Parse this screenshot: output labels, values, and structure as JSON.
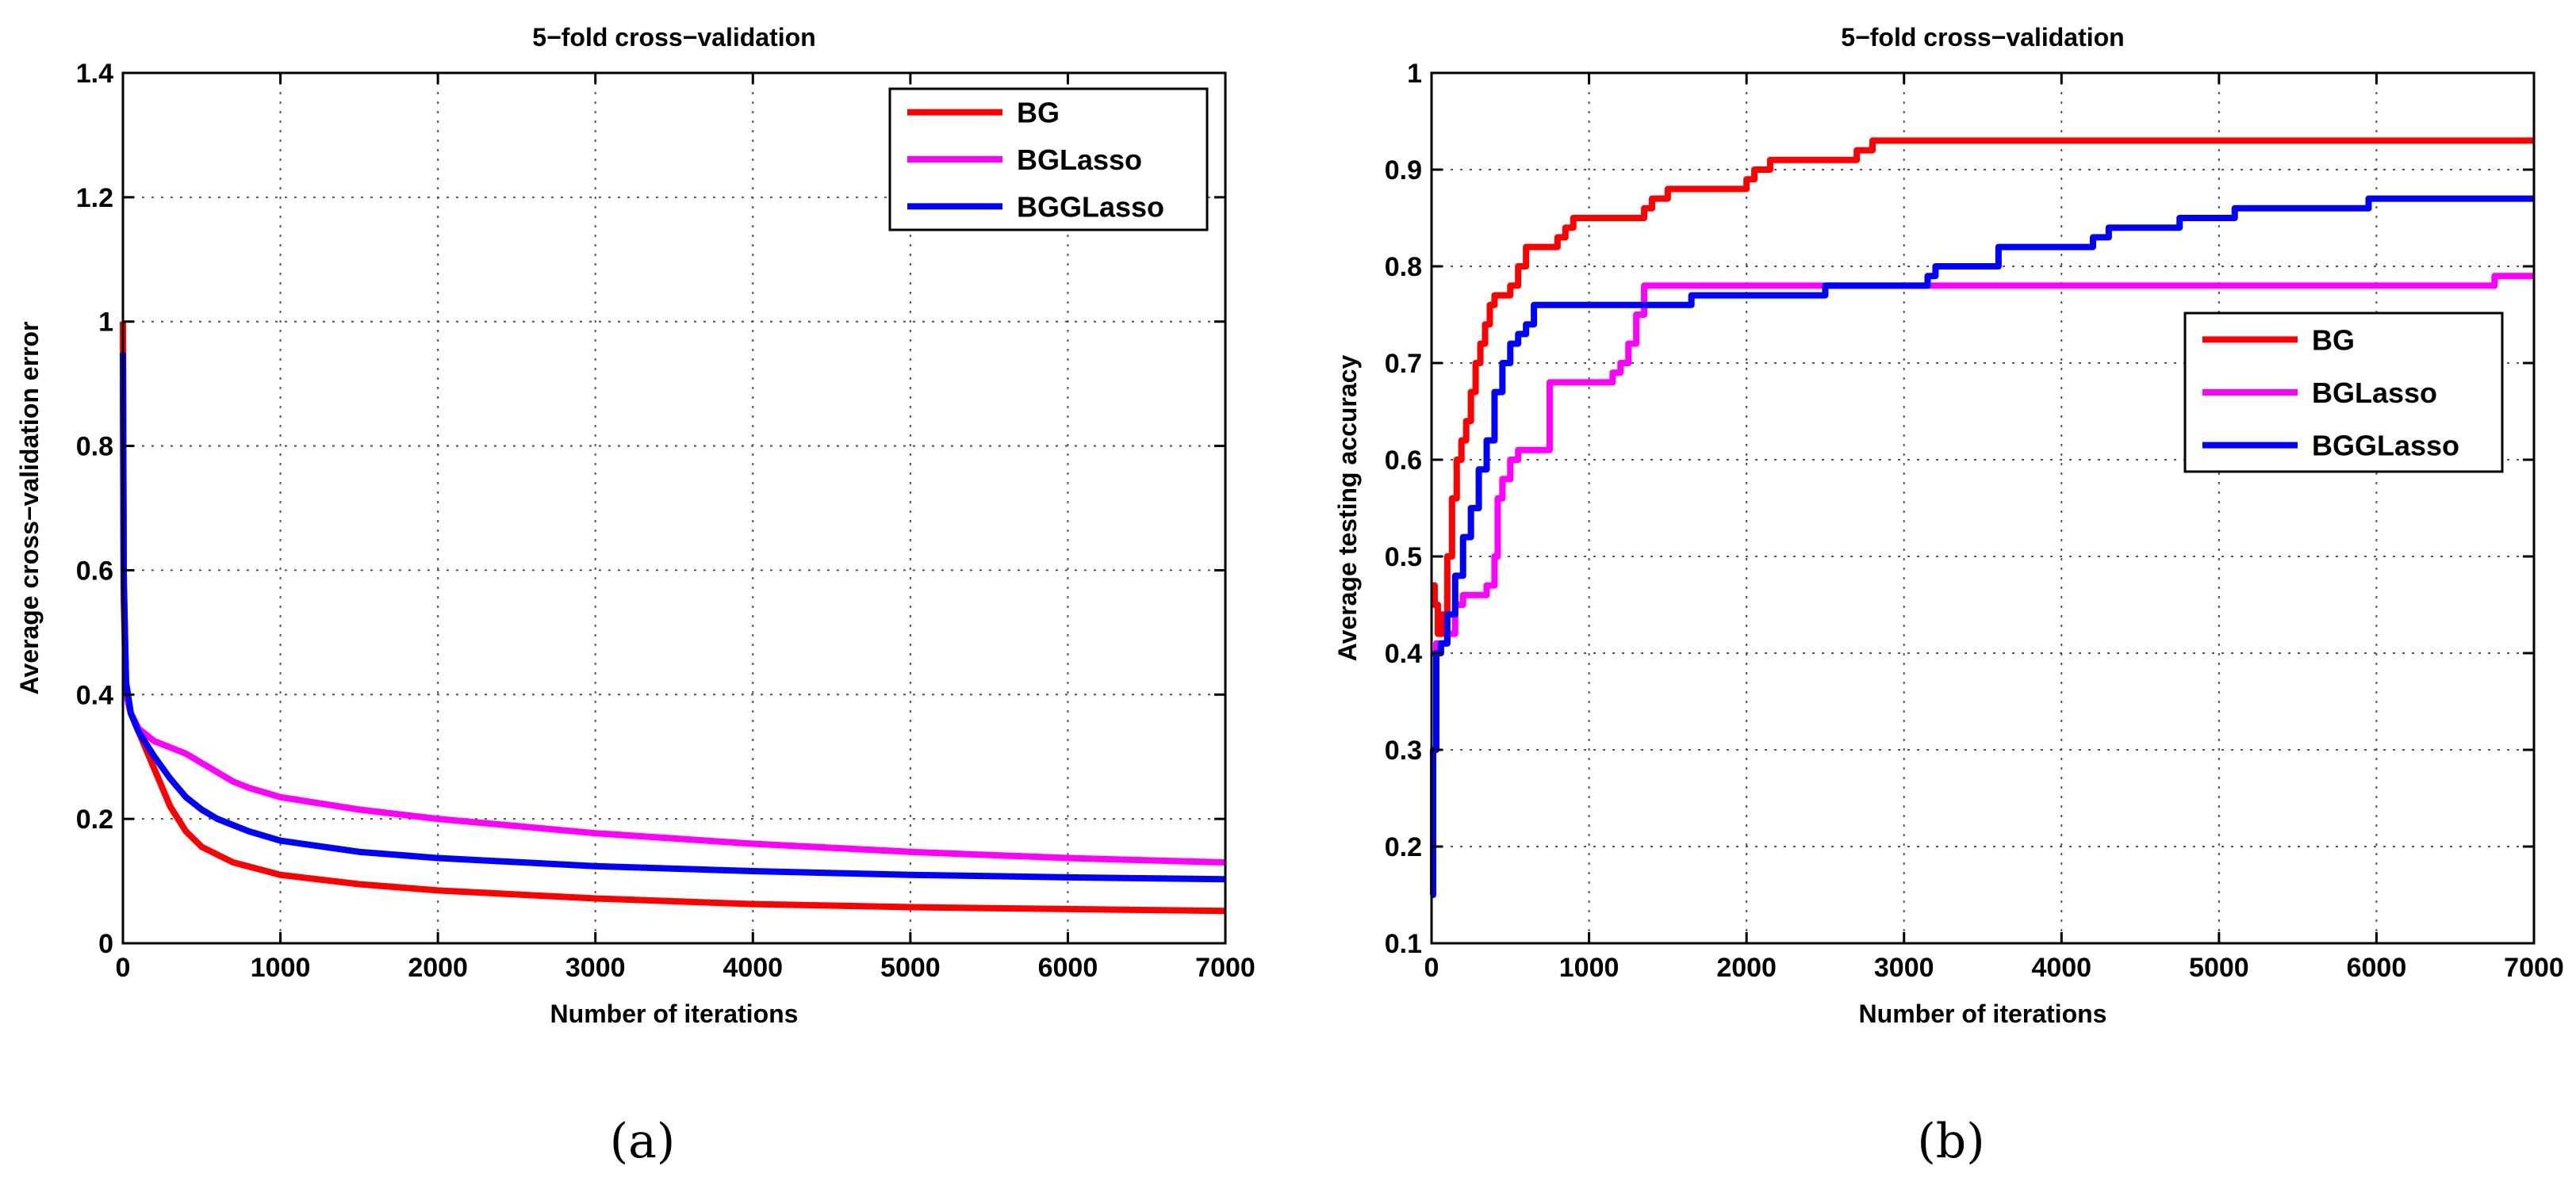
{
  "chart_data": [
    {
      "type": "line",
      "panel": "(a)",
      "title": "5−fold cross−validation",
      "xlabel": "Number of iterations",
      "ylabel": "Average cross−validation error",
      "xlim": [
        0,
        7000
      ],
      "ylim": [
        0,
        1.4
      ],
      "xticks": [
        0,
        1000,
        2000,
        3000,
        4000,
        5000,
        6000,
        7000
      ],
      "xtick_labels": [
        "0",
        "1000",
        "2000",
        "3000",
        "4000",
        "5000",
        "6000",
        "7000"
      ],
      "yticks": [
        0,
        0.2,
        0.4,
        0.6,
        0.8,
        1,
        1.2,
        1.4
      ],
      "ytick_labels": [
        "0",
        "0.2",
        "0.4",
        "0.6",
        "0.8",
        "1",
        "1.2",
        "1.4"
      ],
      "grid": true,
      "legend_position": "top-right",
      "series": [
        {
          "name": "BG",
          "color": "#ff0000",
          "x": [
            0,
            5,
            20,
            50,
            100,
            200,
            300,
            400,
            500,
            700,
            1000,
            1500,
            2000,
            3000,
            4000,
            5000,
            6000,
            7000
          ],
          "y": [
            1.0,
            0.6,
            0.4,
            0.37,
            0.34,
            0.28,
            0.22,
            0.18,
            0.155,
            0.13,
            0.11,
            0.095,
            0.085,
            0.072,
            0.063,
            0.058,
            0.055,
            0.052
          ]
        },
        {
          "name": "BGLasso",
          "color": "#ff00ff",
          "x": [
            0,
            5,
            20,
            50,
            100,
            200,
            300,
            400,
            500,
            600,
            700,
            800,
            1000,
            1500,
            2000,
            3000,
            4000,
            5000,
            6000,
            7000
          ],
          "y": [
            0.9,
            0.55,
            0.4,
            0.37,
            0.345,
            0.325,
            0.315,
            0.305,
            0.29,
            0.275,
            0.26,
            0.25,
            0.235,
            0.215,
            0.2,
            0.177,
            0.16,
            0.147,
            0.137,
            0.13
          ]
        },
        {
          "name": "BGGLasso",
          "color": "#0000ff",
          "x": [
            0,
            5,
            20,
            50,
            100,
            200,
            300,
            400,
            500,
            600,
            800,
            1000,
            1500,
            2000,
            3000,
            4000,
            5000,
            6000,
            7000
          ],
          "y": [
            0.95,
            0.58,
            0.42,
            0.37,
            0.34,
            0.3,
            0.265,
            0.235,
            0.215,
            0.2,
            0.18,
            0.165,
            0.147,
            0.137,
            0.124,
            0.116,
            0.11,
            0.106,
            0.103
          ]
        }
      ]
    },
    {
      "type": "line",
      "panel": "(b)",
      "title": "5−fold cross−validation",
      "xlabel": "Number of iterations",
      "ylabel": "Average testing accuracy",
      "xlim": [
        0,
        7000
      ],
      "ylim": [
        0.1,
        1
      ],
      "xticks": [
        0,
        1000,
        2000,
        3000,
        4000,
        5000,
        6000,
        7000
      ],
      "xtick_labels": [
        "0",
        "1000",
        "2000",
        "3000",
        "4000",
        "5000",
        "6000",
        "7000"
      ],
      "yticks": [
        0.1,
        0.2,
        0.3,
        0.4,
        0.5,
        0.6,
        0.7,
        0.8,
        0.9,
        1
      ],
      "ytick_labels": [
        "0.1",
        "0.2",
        "0.3",
        "0.4",
        "0.5",
        "0.6",
        "0.7",
        "0.8",
        "0.9",
        "1"
      ],
      "grid": true,
      "legend_position": "right",
      "series": [
        {
          "name": "BG",
          "color": "#ff0000",
          "step": true,
          "x": [
            0,
            20,
            40,
            70,
            100,
            130,
            160,
            190,
            220,
            250,
            280,
            310,
            340,
            370,
            400,
            450,
            500,
            550,
            600,
            700,
            800,
            850,
            900,
            1000,
            1300,
            1350,
            1400,
            1450,
            1500,
            2000,
            2050,
            2100,
            2150,
            2700,
            2800,
            3000,
            7000
          ],
          "y": [
            0.47,
            0.45,
            0.42,
            0.44,
            0.5,
            0.56,
            0.6,
            0.62,
            0.64,
            0.67,
            0.7,
            0.72,
            0.74,
            0.76,
            0.77,
            0.77,
            0.78,
            0.8,
            0.82,
            0.82,
            0.83,
            0.84,
            0.85,
            0.85,
            0.85,
            0.86,
            0.87,
            0.87,
            0.88,
            0.89,
            0.9,
            0.9,
            0.91,
            0.92,
            0.93,
            0.93,
            0.93
          ]
        },
        {
          "name": "BGLasso",
          "color": "#ff00ff",
          "step": true,
          "x": [
            0,
            30,
            60,
            100,
            150,
            200,
            250,
            350,
            400,
            420,
            450,
            500,
            550,
            750,
            1150,
            1200,
            1250,
            1300,
            1350,
            6700,
            6750,
            7000
          ],
          "y": [
            0.4,
            0.41,
            0.41,
            0.42,
            0.45,
            0.46,
            0.46,
            0.47,
            0.5,
            0.56,
            0.58,
            0.6,
            0.61,
            0.68,
            0.69,
            0.7,
            0.72,
            0.75,
            0.78,
            0.78,
            0.79,
            0.79
          ]
        },
        {
          "name": "BGGLasso",
          "color": "#0000ff",
          "step": true,
          "x": [
            0,
            10,
            30,
            60,
            100,
            150,
            200,
            250,
            300,
            350,
            400,
            450,
            500,
            550,
            600,
            650,
            1000,
            1600,
            1650,
            2500,
            3150,
            3200,
            3400,
            3600,
            4200,
            4300,
            4400,
            4750,
            5100,
            5950,
            7000
          ],
          "y": [
            0.15,
            0.3,
            0.4,
            0.41,
            0.44,
            0.48,
            0.52,
            0.55,
            0.59,
            0.62,
            0.67,
            0.7,
            0.72,
            0.73,
            0.74,
            0.76,
            0.76,
            0.76,
            0.77,
            0.78,
            0.79,
            0.8,
            0.8,
            0.82,
            0.83,
            0.84,
            0.84,
            0.85,
            0.86,
            0.87,
            0.87
          ]
        }
      ]
    }
  ],
  "captions": {
    "left": "(a)",
    "right": "(b)"
  }
}
